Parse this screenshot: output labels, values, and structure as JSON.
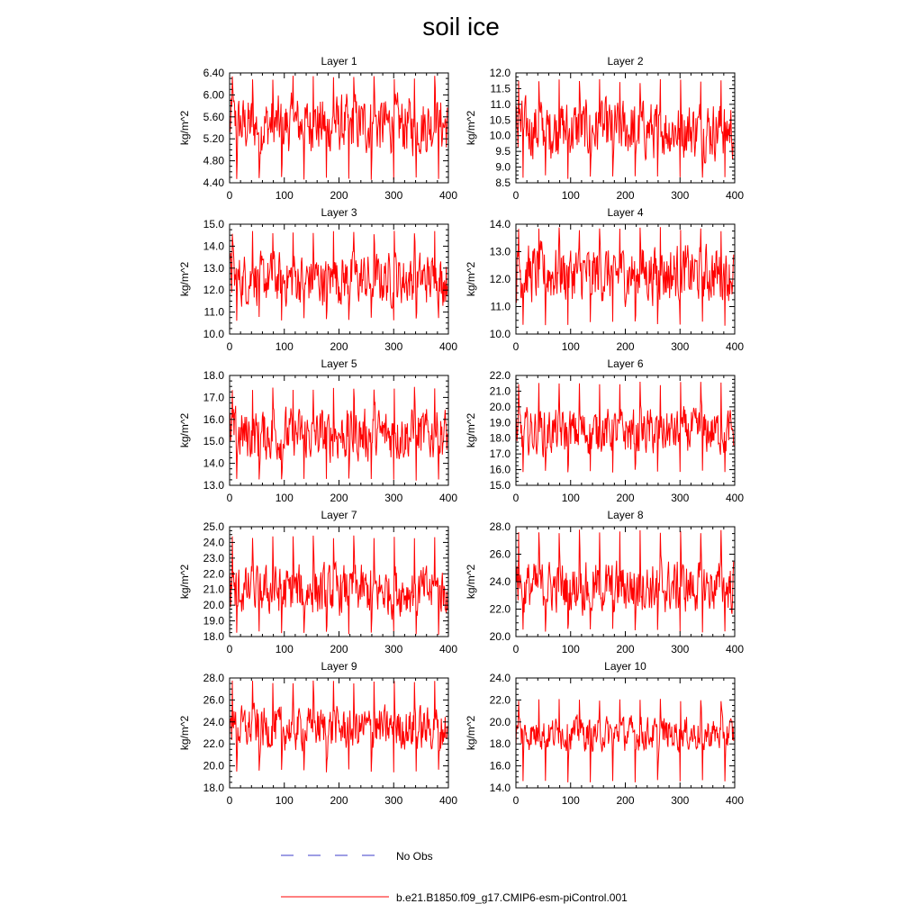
{
  "title": "soil ice",
  "legend": {
    "obs_label": "No Obs",
    "model_label": "b.e21.B1850.f09_g17.CMIP6-esm-piControl.001",
    "obs_color": "#3c3cc8",
    "model_color": "#ff0000"
  },
  "chart_data": [
    {
      "type": "line",
      "title": "Layer 1",
      "ylabel": "kg/m^2",
      "xlim": [
        0,
        400
      ],
      "ylim": [
        4.4,
        6.4
      ],
      "yticks": [
        "4.40",
        "4.80",
        "5.20",
        "5.60",
        "6.00",
        "6.40"
      ],
      "xticks": [
        "0",
        "100",
        "200",
        "300",
        "400"
      ],
      "series": [
        {
          "name": "b.e21.B1850.f09_g17.CMIP6-esm-piControl.001",
          "mean": 5.45,
          "amp": 0.8,
          "min": 4.45,
          "max": 6.35
        }
      ]
    },
    {
      "type": "line",
      "title": "Layer 2",
      "ylabel": "kg/m^2",
      "xlim": [
        0,
        400
      ],
      "ylim": [
        8.5,
        12.0
      ],
      "yticks": [
        "8.5",
        "9.0",
        "9.5",
        "10.0",
        "10.5",
        "11.0",
        "11.5",
        "12.0"
      ],
      "xticks": [
        "0",
        "100",
        "200",
        "300",
        "400"
      ],
      "series": [
        {
          "name": "b.e21.B1850.f09_g17.CMIP6-esm-piControl.001",
          "mean": 10.2,
          "amp": 1.4,
          "min": 8.6,
          "max": 11.8
        }
      ]
    },
    {
      "type": "line",
      "title": "Layer 3",
      "ylabel": "kg/m^2",
      "xlim": [
        0,
        400
      ],
      "ylim": [
        10.0,
        15.0
      ],
      "yticks": [
        "10.0",
        "11.0",
        "12.0",
        "13.0",
        "14.0",
        "15.0"
      ],
      "xticks": [
        "0",
        "100",
        "200",
        "300",
        "400"
      ],
      "series": [
        {
          "name": "b.e21.B1850.f09_g17.CMIP6-esm-piControl.001",
          "mean": 12.5,
          "amp": 1.8,
          "min": 10.6,
          "max": 14.7
        }
      ]
    },
    {
      "type": "line",
      "title": "Layer 4",
      "ylabel": "kg/m^2",
      "xlim": [
        0,
        400
      ],
      "ylim": [
        10.0,
        14.0
      ],
      "yticks": [
        "10.0",
        "11.0",
        "12.0",
        "13.0",
        "14.0"
      ],
      "xticks": [
        "0",
        "100",
        "200",
        "300",
        "400"
      ],
      "series": [
        {
          "name": "b.e21.B1850.f09_g17.CMIP6-esm-piControl.001",
          "mean": 12.2,
          "amp": 1.6,
          "min": 10.3,
          "max": 13.9
        }
      ]
    },
    {
      "type": "line",
      "title": "Layer 5",
      "ylabel": "kg/m^2",
      "xlim": [
        0,
        400
      ],
      "ylim": [
        13.0,
        18.0
      ],
      "yticks": [
        "13.0",
        "14.0",
        "15.0",
        "16.0",
        "17.0",
        "18.0"
      ],
      "xticks": [
        "0",
        "100",
        "200",
        "300",
        "400"
      ],
      "series": [
        {
          "name": "b.e21.B1850.f09_g17.CMIP6-esm-piControl.001",
          "mean": 15.3,
          "amp": 1.8,
          "min": 13.2,
          "max": 17.5
        }
      ]
    },
    {
      "type": "line",
      "title": "Layer 6",
      "ylabel": "kg/m^2",
      "xlim": [
        0,
        400
      ],
      "ylim": [
        15.0,
        22.0
      ],
      "yticks": [
        "15.0",
        "16.0",
        "17.0",
        "18.0",
        "19.0",
        "20.0",
        "21.0",
        "22.0"
      ],
      "xticks": [
        "0",
        "100",
        "200",
        "300",
        "400"
      ],
      "series": [
        {
          "name": "b.e21.B1850.f09_g17.CMIP6-esm-piControl.001",
          "mean": 18.4,
          "amp": 2.2,
          "min": 15.8,
          "max": 21.6
        }
      ]
    },
    {
      "type": "line",
      "title": "Layer 7",
      "ylabel": "kg/m^2",
      "xlim": [
        0,
        400
      ],
      "ylim": [
        18.0,
        25.0
      ],
      "yticks": [
        "18.0",
        "19.0",
        "20.0",
        "21.0",
        "22.0",
        "23.0",
        "24.0",
        "25.0"
      ],
      "xticks": [
        "0",
        "100",
        "200",
        "300",
        "400"
      ],
      "series": [
        {
          "name": "b.e21.B1850.f09_g17.CMIP6-esm-piControl.001",
          "mean": 20.9,
          "amp": 2.4,
          "min": 18.1,
          "max": 24.5
        }
      ]
    },
    {
      "type": "line",
      "title": "Layer 8",
      "ylabel": "kg/m^2",
      "xlim": [
        0,
        400
      ],
      "ylim": [
        20.0,
        28.0
      ],
      "yticks": [
        "20.0",
        "22.0",
        "24.0",
        "26.0",
        "28.0"
      ],
      "xticks": [
        "0",
        "100",
        "200",
        "300",
        "400"
      ],
      "series": [
        {
          "name": "b.e21.B1850.f09_g17.CMIP6-esm-piControl.001",
          "mean": 23.6,
          "amp": 2.8,
          "min": 20.3,
          "max": 27.8
        }
      ]
    },
    {
      "type": "line",
      "title": "Layer 9",
      "ylabel": "kg/m^2",
      "xlim": [
        0,
        400
      ],
      "ylim": [
        18.0,
        28.0
      ],
      "yticks": [
        "18.0",
        "20.0",
        "22.0",
        "24.0",
        "26.0",
        "28.0"
      ],
      "xticks": [
        "0",
        "100",
        "200",
        "300",
        "400"
      ],
      "series": [
        {
          "name": "b.e21.B1850.f09_g17.CMIP6-esm-piControl.001",
          "mean": 23.4,
          "amp": 3.0,
          "min": 19.4,
          "max": 27.8
        }
      ]
    },
    {
      "type": "line",
      "title": "Layer 10",
      "ylabel": "kg/m^2",
      "xlim": [
        0,
        400
      ],
      "ylim": [
        14.0,
        24.0
      ],
      "yticks": [
        "14.0",
        "16.0",
        "18.0",
        "20.0",
        "22.0",
        "24.0"
      ],
      "xticks": [
        "0",
        "100",
        "200",
        "300",
        "400"
      ],
      "series": [
        {
          "name": "b.e21.B1850.f09_g17.CMIP6-esm-piControl.001",
          "mean": 18.9,
          "amp": 2.3,
          "min": 14.5,
          "max": 22.1
        }
      ]
    }
  ]
}
